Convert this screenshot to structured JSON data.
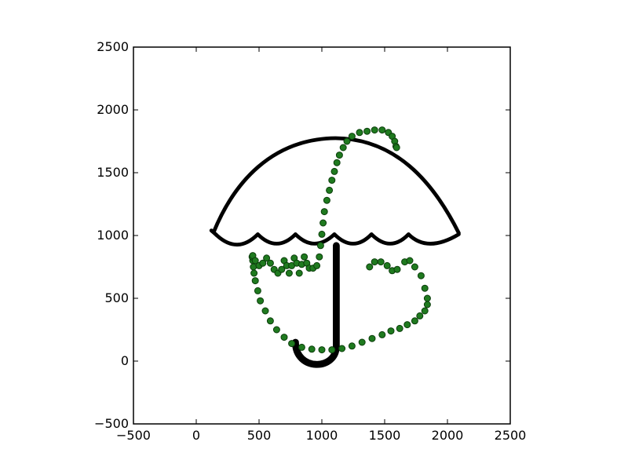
{
  "chart_data": {
    "type": "scatter",
    "title": "",
    "xlabel": "",
    "ylabel": "",
    "xlim": [
      -500,
      2500
    ],
    "ylim": [
      2500,
      -500
    ],
    "y_inverted": true,
    "grid": false,
    "legend": "none",
    "x_ticks": [
      -500,
      0,
      500,
      1000,
      1500,
      2000,
      2500
    ],
    "x_tick_labels": [
      "−500",
      "0",
      "500",
      "1000",
      "1500",
      "2000",
      "2500"
    ],
    "y_ticks": [
      -500,
      0,
      500,
      1000,
      1500,
      2000,
      2500
    ],
    "y_tick_labels": [
      "−500",
      "0",
      "500",
      "1000",
      "1500",
      "2000",
      "2500"
    ],
    "background_image": "umbrella-outline",
    "colors": {
      "marker_fill": "#1f7a1f",
      "marker_edge": "#0b3d0b",
      "umbrella": "#000000"
    },
    "series": [
      {
        "marker": "circle",
        "x": [
          1380,
          1420,
          1470,
          1520,
          1560,
          1600,
          1660,
          1700,
          1740,
          1790,
          1820,
          1840,
          1840,
          1820,
          1780,
          1740,
          1680,
          1620,
          1550,
          1480,
          1400,
          1320,
          1240,
          1160,
          1080,
          1000,
          920,
          840,
          760,
          700,
          640,
          590,
          550,
          510,
          490,
          470,
          460,
          455,
          450,
          445,
          450,
          470,
          500,
          530,
          560,
          590,
          620,
          650,
          680,
          700,
          720,
          740,
          760,
          780,
          800,
          820,
          840,
          860,
          880,
          900,
          930,
          960,
          980,
          990,
          1000,
          1010,
          1020,
          1040,
          1060,
          1080,
          1100,
          1120,
          1140,
          1170,
          1200,
          1240,
          1300,
          1360,
          1420,
          1480,
          1530,
          1560,
          1580,
          1590,
          1595
        ],
        "y": [
          750,
          790,
          790,
          760,
          720,
          730,
          790,
          800,
          750,
          680,
          580,
          500,
          450,
          400,
          360,
          320,
          290,
          260,
          240,
          210,
          180,
          150,
          120,
          100,
          90,
          90,
          95,
          110,
          140,
          190,
          250,
          320,
          400,
          480,
          560,
          640,
          700,
          750,
          800,
          830,
          840,
          800,
          760,
          780,
          820,
          780,
          730,
          700,
          730,
          800,
          760,
          700,
          760,
          820,
          780,
          700,
          770,
          830,
          780,
          740,
          740,
          760,
          830,
          920,
          1010,
          1100,
          1190,
          1280,
          1360,
          1440,
          1510,
          1580,
          1640,
          1700,
          1750,
          1790,
          1820,
          1830,
          1840,
          1840,
          1820,
          1790,
          1750,
          1710,
          1700
        ]
      }
    ]
  }
}
